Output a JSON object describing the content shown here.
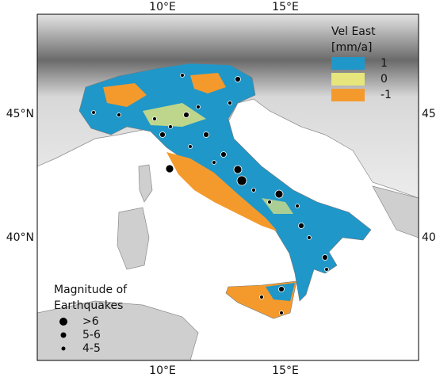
{
  "lon_labels": [
    "10°E",
    "15°E"
  ],
  "lat_labels": [
    "45°N",
    "40°N"
  ],
  "velocity_legend": {
    "title": "Vel East",
    "unit": "[mm/a]",
    "classes": [
      {
        "label": "1",
        "color": "#1f97c9"
      },
      {
        "label": "0",
        "color": "#e6e67c"
      },
      {
        "label": "-1",
        "color": "#f49a2c"
      }
    ]
  },
  "magnitude_legend": {
    "title_lines": [
      "Magnitude of",
      "Earthquakes"
    ],
    "classes": [
      ">6",
      "5-6",
      "4-5"
    ]
  }
}
